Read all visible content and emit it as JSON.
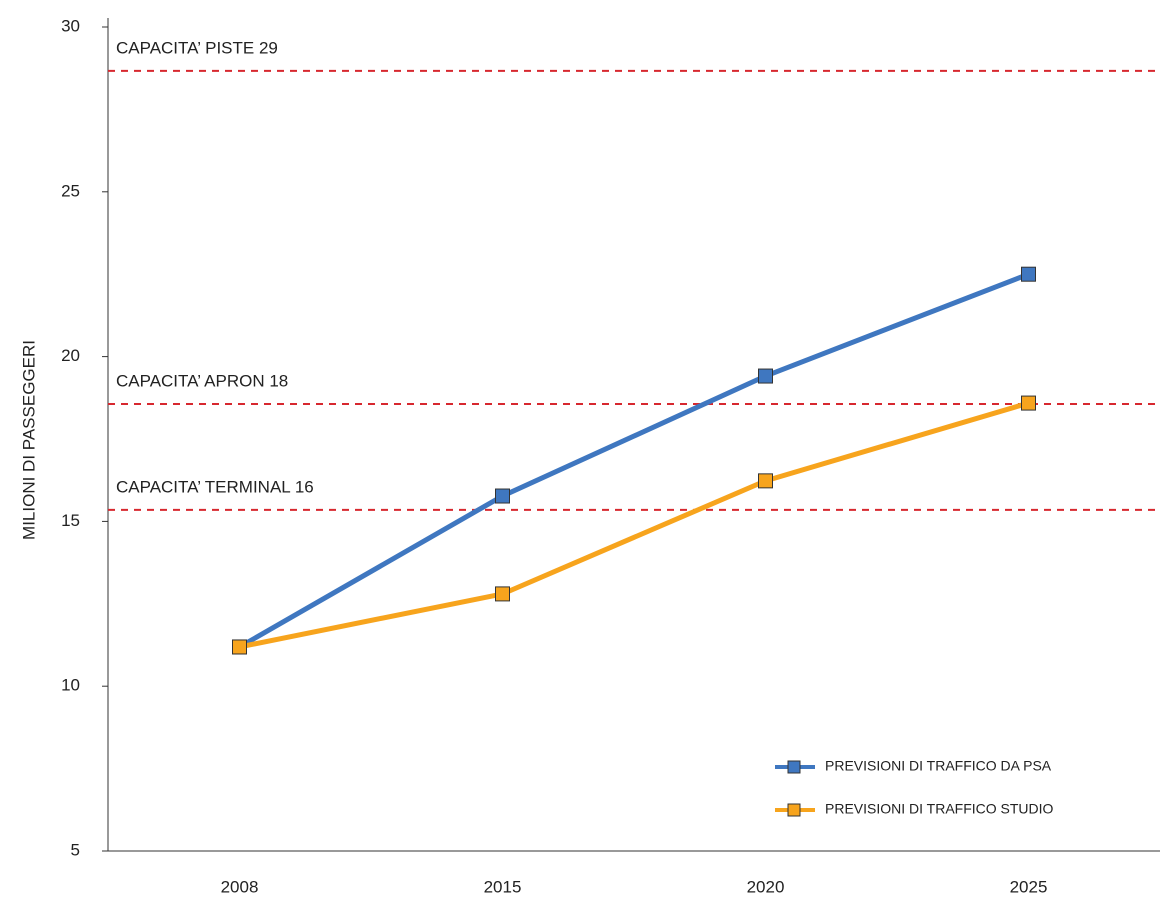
{
  "chart_data": {
    "type": "line",
    "y_label": "MILIONI DI PASSEGGERI",
    "categories": [
      "2008",
      "2015",
      "2020",
      "2025"
    ],
    "series": [
      {
        "name": "PREVISIONI DI TRAFFICO DA PSA",
        "color": "#3f77c0",
        "values": [
          11.19,
          15.77,
          19.41,
          22.5
        ]
      },
      {
        "name": "PREVISIONI DI TRAFFICO STUDIO",
        "color": "#f7a41d",
        "values": [
          11.19,
          12.8,
          16.23,
          18.59
        ]
      }
    ],
    "reference_lines": [
      {
        "label": "CAPACITA’ PISTE 29",
        "value": 28.67,
        "color": "#d7282f"
      },
      {
        "label": "CAPACITA’ APRON 18",
        "value": 18.56,
        "color": "#d7282f"
      },
      {
        "label": "CAPACITA’ TERMINAL 16",
        "value": 15.35,
        "color": "#d7282f"
      }
    ],
    "ylim": [
      5,
      30
    ],
    "yticks": [
      5,
      10,
      15,
      20,
      25,
      30
    ],
    "legend": "lower right"
  }
}
